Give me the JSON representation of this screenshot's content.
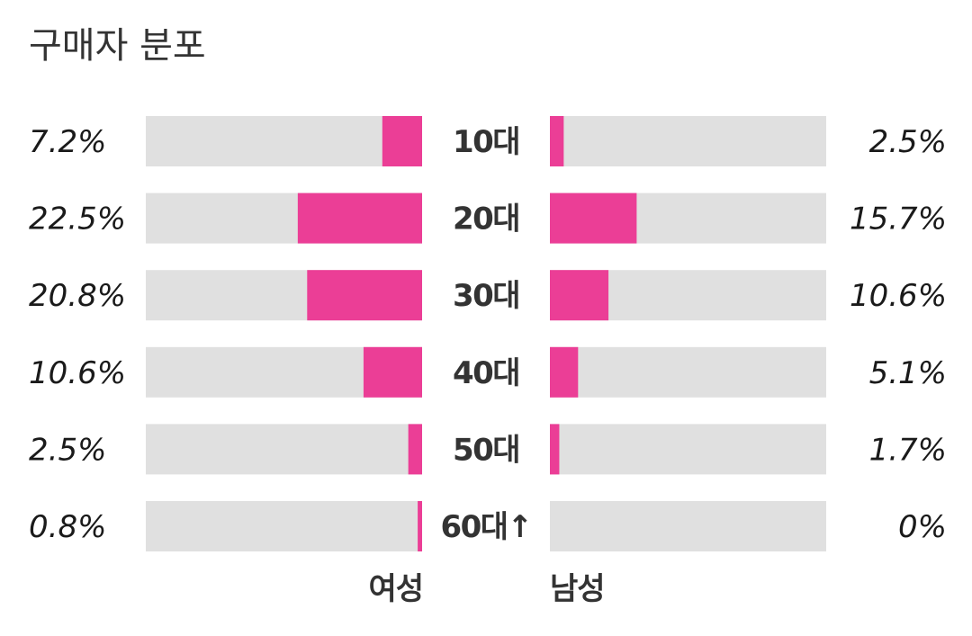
{
  "chart_data": {
    "type": "bar",
    "title": "구매자 분포",
    "categories": [
      "10대",
      "20대",
      "30대",
      "40대",
      "50대",
      "60대↑"
    ],
    "series": [
      {
        "name": "여성",
        "values": [
          7.2,
          22.5,
          20.8,
          10.6,
          2.5,
          0.8
        ],
        "labels": [
          "7.2%",
          "22.5%",
          "20.8%",
          "10.6%",
          "2.5%",
          "0.8%"
        ]
      },
      {
        "name": "남성",
        "values": [
          2.5,
          15.7,
          10.6,
          5.1,
          1.7,
          0
        ],
        "labels": [
          "2.5%",
          "15.7%",
          "10.6%",
          "5.1%",
          "1.7%",
          "0%"
        ]
      }
    ],
    "xlim": [
      0,
      50
    ],
    "colors": {
      "bar": "#eb3e96",
      "track": "#e0e0e0"
    }
  }
}
